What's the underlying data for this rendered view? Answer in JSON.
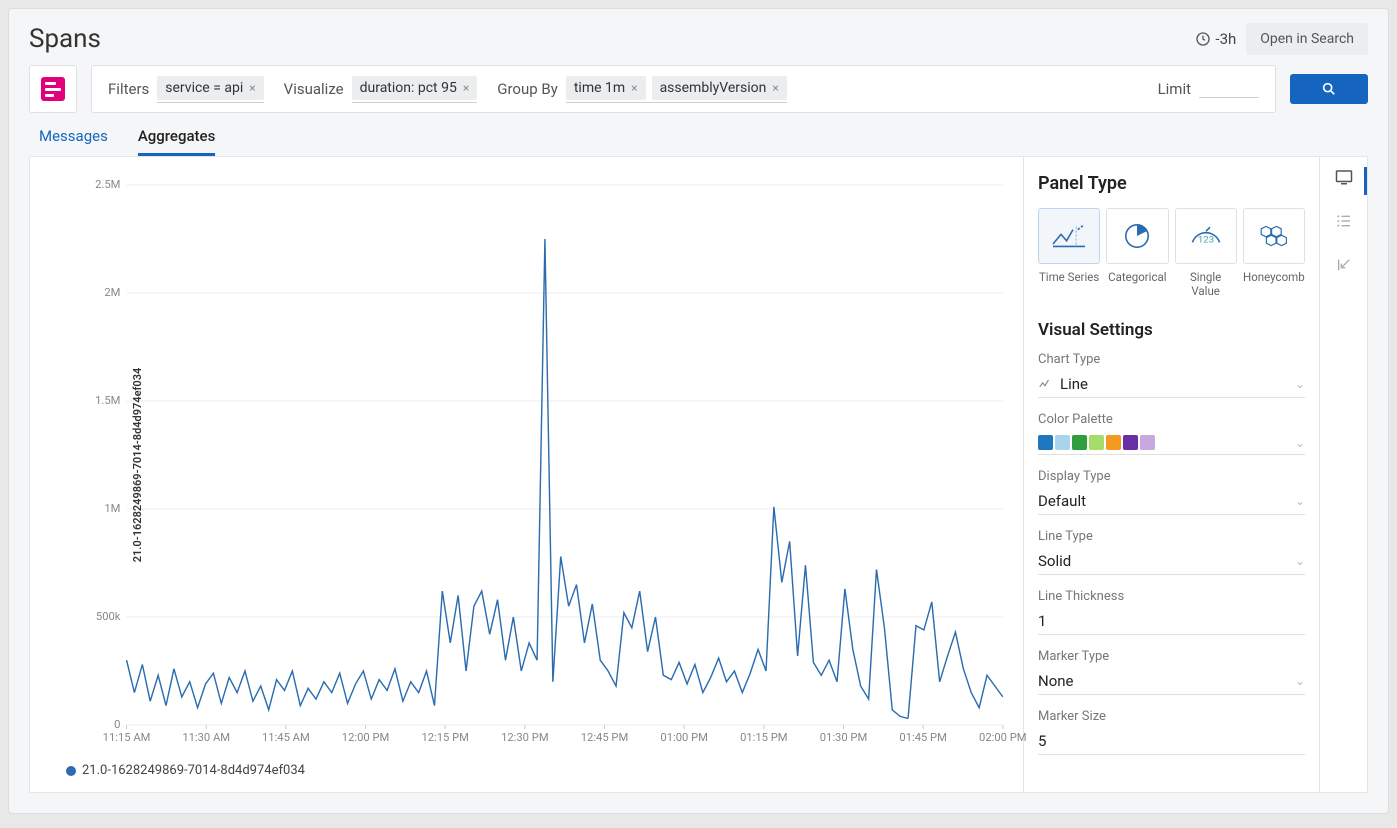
{
  "header": {
    "title": "Spans",
    "time_range": "-3h",
    "open_search": "Open in Search"
  },
  "query": {
    "filters_label": "Filters",
    "filter_chips": [
      "service = api"
    ],
    "visualize_label": "Visualize",
    "visualize_chips": [
      "duration: pct 95"
    ],
    "groupby_label": "Group By",
    "groupby_chips": [
      "time 1m",
      "assemblyVersion"
    ],
    "limit_label": "Limit",
    "limit_value": ""
  },
  "tabs": {
    "items": [
      "Messages",
      "Aggregates"
    ],
    "active_index": 1
  },
  "chart": {
    "type": "line",
    "y_axis_label": "21.0-1628249869-7014-8d4d974ef034",
    "y_ticks": [
      {
        "v": 0,
        "label": "0"
      },
      {
        "v": 500000,
        "label": "500k"
      },
      {
        "v": 1000000,
        "label": "1M"
      },
      {
        "v": 1500000,
        "label": "1.5M"
      },
      {
        "v": 2000000,
        "label": "2M"
      },
      {
        "v": 2500000,
        "label": "2.5M"
      }
    ],
    "y_min": 0,
    "y_max": 2500000,
    "x_ticks": [
      "11:15 AM",
      "11:30 AM",
      "11:45 AM",
      "12:00 PM",
      "12:15 PM",
      "12:30 PM",
      "12:45 PM",
      "01:00 PM",
      "01:15 PM",
      "01:30 PM",
      "01:45 PM",
      "02:00 PM"
    ],
    "series": [
      {
        "name": "21.0-1628249869-7014-8d4d974ef034",
        "color": "#2b6cb0",
        "values": [
          300000,
          150000,
          280000,
          110000,
          230000,
          90000,
          260000,
          130000,
          200000,
          80000,
          190000,
          240000,
          100000,
          220000,
          150000,
          250000,
          110000,
          180000,
          70000,
          210000,
          160000,
          250000,
          90000,
          170000,
          120000,
          200000,
          150000,
          240000,
          100000,
          190000,
          250000,
          120000,
          210000,
          160000,
          260000,
          110000,
          200000,
          150000,
          250000,
          90000,
          620000,
          380000,
          600000,
          250000,
          550000,
          620000,
          420000,
          580000,
          300000,
          500000,
          250000,
          380000,
          300000,
          2250000,
          200000,
          780000,
          550000,
          650000,
          380000,
          560000,
          300000,
          250000,
          180000,
          520000,
          450000,
          620000,
          340000,
          500000,
          230000,
          210000,
          290000,
          190000,
          280000,
          150000,
          220000,
          310000,
          200000,
          250000,
          150000,
          240000,
          350000,
          250000,
          1010000,
          660000,
          850000,
          320000,
          740000,
          290000,
          230000,
          300000,
          200000,
          630000,
          350000,
          180000,
          120000,
          720000,
          450000,
          70000,
          40000,
          30000,
          460000,
          440000,
          570000,
          200000,
          320000,
          430000,
          260000,
          150000,
          80000,
          230000,
          180000,
          130000
        ]
      }
    ],
    "segments": [
      {
        "start": 0,
        "end": 99
      },
      {
        "start": 99,
        "end": 111
      }
    ],
    "legend": [
      {
        "label": "21.0-1628249869-7014-8d4d974ef034",
        "color": "#2b6cb0"
      }
    ],
    "grid_color": "#eeeeee",
    "axis_color": "#888888",
    "background": "#ffffff"
  },
  "panel": {
    "panel_type_heading": "Panel Type",
    "types": [
      "Time Series",
      "Categorical",
      "Single Value",
      "Honeycomb"
    ],
    "selected_type": 0,
    "visual_settings_heading": "Visual Settings",
    "fields": {
      "chart_type": {
        "label": "Chart Type",
        "value": "Line"
      },
      "color_palette": {
        "label": "Color Palette",
        "swatches": [
          "#1e77c0",
          "#a8d5eb",
          "#2e9e3f",
          "#a6dd6a",
          "#f39a1f",
          "#6a2ea7",
          "#c9a8e0"
        ]
      },
      "display_type": {
        "label": "Display Type",
        "value": "Default"
      },
      "line_type": {
        "label": "Line Type",
        "value": "Solid"
      },
      "line_thickness": {
        "label": "Line Thickness",
        "value": "1"
      },
      "marker_type": {
        "label": "Marker Type",
        "value": "None"
      },
      "marker_size": {
        "label": "Marker Size",
        "value": "5"
      }
    }
  }
}
